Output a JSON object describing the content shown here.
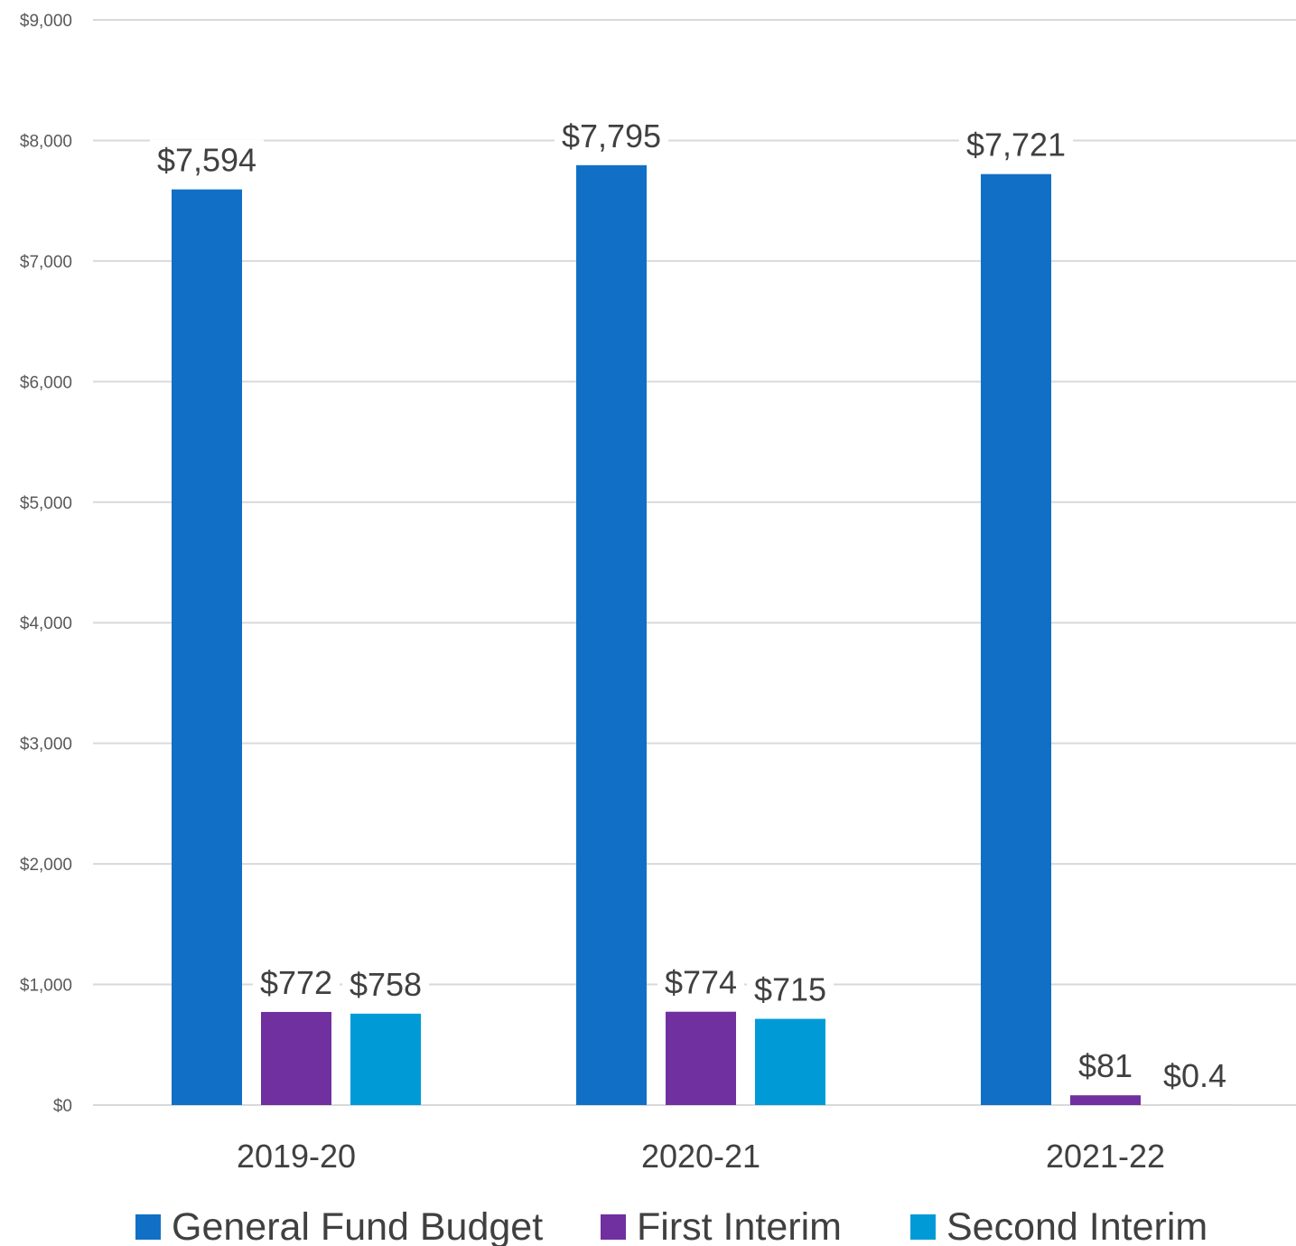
{
  "chart_data": {
    "type": "bar",
    "categories": [
      "2019-20",
      "2020-21",
      "2021-22"
    ],
    "series": [
      {
        "name": "General Fund Budget",
        "color": "#1170c6",
        "values": [
          7594,
          7795,
          7721
        ],
        "labels": [
          "$7,594",
          "$7,795",
          "$7,721"
        ]
      },
      {
        "name": "First Interim",
        "color": "#7030a0",
        "values": [
          772,
          774,
          81
        ],
        "labels": [
          "$772",
          "$774",
          "$81"
        ]
      },
      {
        "name": "Second Interim",
        "color": "#009bd7",
        "values": [
          758,
          715,
          0.4
        ],
        "labels": [
          "$758",
          "$715",
          "$0.4"
        ]
      }
    ],
    "ylim": [
      0,
      9000
    ],
    "yticks": [
      0,
      1000,
      2000,
      3000,
      4000,
      5000,
      6000,
      7000,
      8000,
      9000
    ],
    "ytick_labels": [
      "$0",
      "$1,000",
      "$2,000",
      "$3,000",
      "$4,000",
      "$5,000",
      "$6,000",
      "$7,000",
      "$8,000",
      "$9,000"
    ],
    "grid": true,
    "legend_position": "bottom",
    "title": "",
    "xlabel": "",
    "ylabel": ""
  }
}
